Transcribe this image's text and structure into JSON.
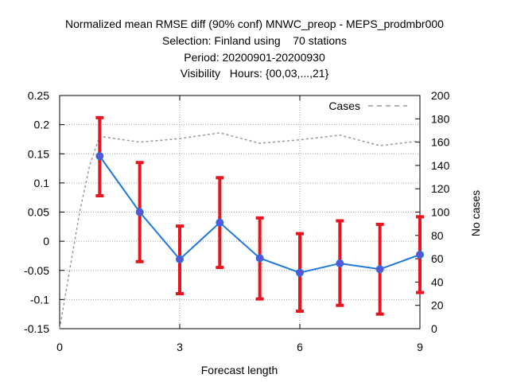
{
  "title_lines": [
    "Normalized mean RMSE diff (90% conf) MNWC_preop - MEPS_prodmbr000",
    "Selection: Finland using    70 stations",
    "Period: 20200901-20200930",
    "Visibility   Hours: {00,03,...,21}"
  ],
  "chart_data": {
    "type": "line",
    "xlabel": "Forecast length",
    "ylabel_left": "",
    "ylabel_right": "No cases",
    "xlim": [
      0,
      9
    ],
    "ylim": [
      -0.15,
      0.25
    ],
    "y2lim": [
      0,
      200
    ],
    "x_ticks": [
      0,
      3,
      6,
      9
    ],
    "y_ticks": [
      "-0.15",
      "-0.1",
      "-0.05",
      "0",
      "0.05",
      "0.1",
      "0.15",
      "0.2",
      "0.25"
    ],
    "y2_ticks": [
      "0",
      "20",
      "40",
      "60",
      "80",
      "100",
      "120",
      "140",
      "160",
      "180",
      "200"
    ],
    "grid": true,
    "legend_position": "top-right",
    "series": [
      {
        "kind": "mean_with_errorbars",
        "color": "#1e78dc",
        "marker_color": "#5a55d8",
        "errorbar_color": "#e8141e",
        "x": [
          1,
          2,
          3,
          4,
          5,
          6,
          7,
          8,
          9
        ],
        "y": [
          0.146,
          0.05,
          -0.031,
          0.032,
          -0.029,
          -0.054,
          -0.038,
          -0.048,
          -0.023
        ],
        "lower": [
          0.078,
          -0.035,
          -0.09,
          -0.045,
          -0.099,
          -0.12,
          -0.11,
          -0.125,
          -0.088
        ],
        "upper": [
          0.212,
          0.135,
          0.026,
          0.109,
          0.04,
          0.013,
          0.035,
          0.029,
          0.042
        ]
      },
      {
        "name": "Cases",
        "axis": "right",
        "style": "dashed",
        "color": "#999999",
        "x": [
          0,
          0.25,
          0.5,
          0.75,
          1,
          2,
          3,
          4,
          5,
          6,
          7,
          8,
          9
        ],
        "y": [
          0,
          50,
          100,
          140,
          165,
          160,
          163,
          168,
          159,
          162,
          166,
          157,
          161
        ]
      }
    ]
  }
}
